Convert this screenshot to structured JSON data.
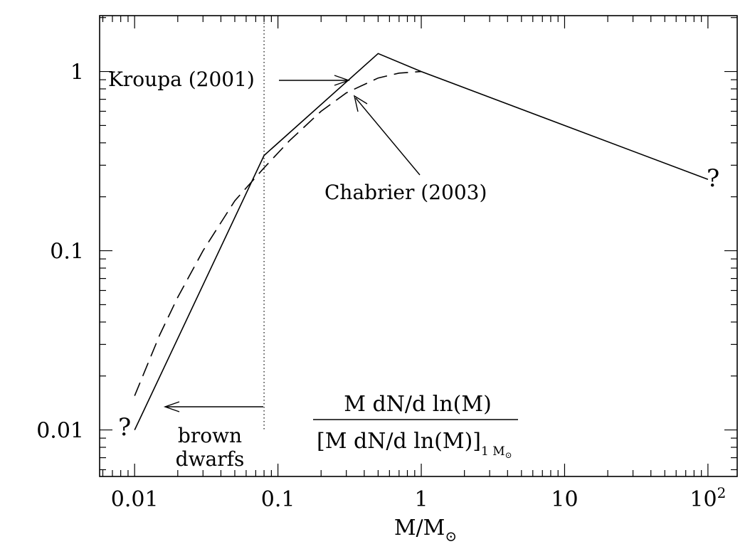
{
  "chart_data": {
    "type": "line",
    "title": "",
    "xlabel": "M/M",
    "xlabel_subscript": "⊙",
    "ylabel": "",
    "xscale": "log",
    "yscale": "log",
    "xlim": [
      0.0057,
      160
    ],
    "ylim": [
      0.0055,
      2.05
    ],
    "x_ticks": [
      {
        "value": 0.01,
        "label": "0.01"
      },
      {
        "value": 0.1,
        "label": "0.1"
      },
      {
        "value": 1,
        "label": "1"
      },
      {
        "value": 10,
        "label": "10"
      },
      {
        "value": 100,
        "label": "10",
        "sup": "2"
      }
    ],
    "y_ticks": [
      {
        "value": 0.01,
        "label": "0.01"
      },
      {
        "value": 0.1,
        "label": "0.1"
      },
      {
        "value": 1,
        "label": "1"
      }
    ],
    "grid": false,
    "series": [
      {
        "name": "Kroupa (2001)",
        "style": "solid",
        "x": [
          0.01,
          0.08,
          0.5,
          1,
          100
        ],
        "y": [
          0.01,
          0.34,
          1.26,
          1.0,
          0.25
        ]
      },
      {
        "name": "Chabrier (2003)",
        "style": "dashed",
        "x": [
          0.01,
          0.015,
          0.02,
          0.03,
          0.05,
          0.08,
          0.12,
          0.2,
          0.3,
          0.5,
          0.7,
          1.0
        ],
        "y": [
          0.0155,
          0.034,
          0.055,
          0.1,
          0.19,
          0.29,
          0.41,
          0.6,
          0.76,
          0.92,
          0.98,
          1.0
        ]
      }
    ],
    "annotations": {
      "kroupa_label": "Kroupa (2001)",
      "chabrier_label": "Chabrier (2003)",
      "question_mark": "?",
      "brown_dwarfs_line1": "brown",
      "brown_dwarfs_line2": "dwarfs",
      "ratio_numerator": "M dN/d ln(M)",
      "ratio_denominator": "[M dN/d ln(M)]",
      "ratio_denominator_subscript": "1 M",
      "ratio_denominator_subscript_sun": "⊙"
    },
    "vertical_marker_x": 0.08
  }
}
